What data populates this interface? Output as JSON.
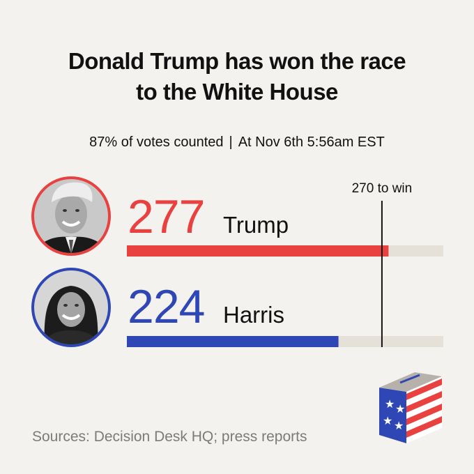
{
  "title_line1": "Donald Trump has won the race",
  "title_line2": "to the White House",
  "subtitle": {
    "left": "87% of votes counted",
    "separator": "|",
    "right": "At Nov 6th 5:56am EST"
  },
  "chart_data": {
    "type": "bar",
    "orientation": "horizontal",
    "categories": [
      "Trump",
      "Harris"
    ],
    "values": [
      277,
      224
    ],
    "value_labels": [
      "277",
      "224"
    ],
    "xlim": [
      0,
      335
    ],
    "threshold": {
      "value": 270,
      "label": "270 to win"
    },
    "colors": {
      "Trump": "#e8413f",
      "Harris": "#2f47b5",
      "track": "#e5e1d9"
    }
  },
  "source": "Sources: Decision Desk HQ; press reports",
  "icons": [
    "trump-avatar",
    "harris-avatar",
    "ballot-box-icon"
  ]
}
